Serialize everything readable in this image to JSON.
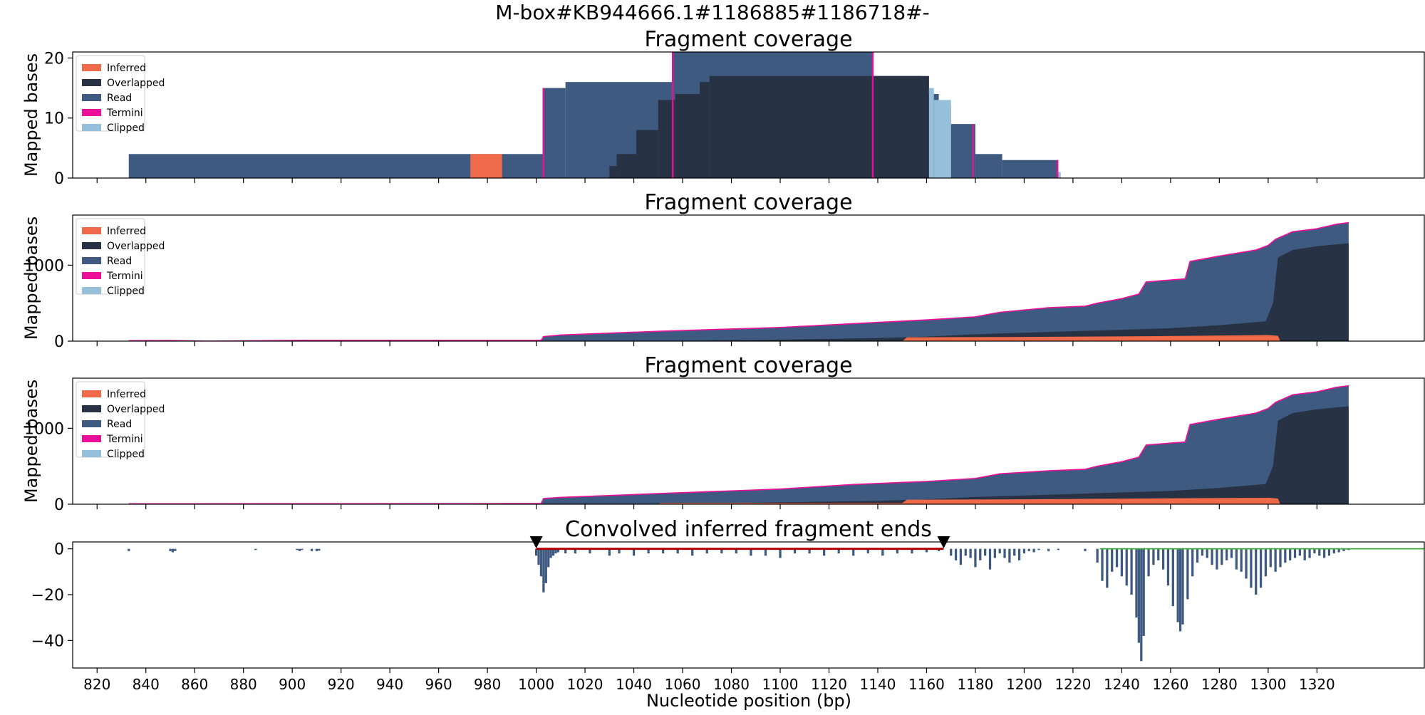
{
  "suptitle": "M-box#KB944666.1#1186885#1186718#-",
  "xlabel": "Nucleotide position (bp)",
  "x_ticks": [
    820,
    840,
    860,
    880,
    900,
    920,
    940,
    960,
    980,
    1000,
    1020,
    1040,
    1060,
    1080,
    1100,
    1120,
    1140,
    1160,
    1180,
    1200,
    1220,
    1240,
    1260,
    1280,
    1300,
    1320
  ],
  "xlim": [
    810,
    1364
  ],
  "colors": {
    "inferred": "#ef6a4a",
    "overlapped": "#283245",
    "read": "#3e5a80",
    "termini": "#ec0f9a",
    "clipped": "#96bfdb",
    "interval_line": "#b30000",
    "green_line": "#3aa83a",
    "marker": "#000000"
  },
  "chart_data": [
    {
      "type": "area",
      "title": "Fragment coverage",
      "ylabel": "Mapped bases",
      "ylim": [
        0,
        21
      ],
      "yticks": [
        0,
        10,
        20
      ],
      "legend_position": "upper-left",
      "legend": [
        "Inferred",
        "Overlapped",
        "Read",
        "Termini",
        "Clipped"
      ],
      "series": [
        {
          "name": "Read",
          "key": "read",
          "steps": [
            [
              833,
              1003,
              4
            ],
            [
              1003,
              1012,
              15
            ],
            [
              1012,
              1056,
              16
            ],
            [
              1056,
              1138,
              21
            ],
            [
              1138,
              1148,
              17
            ],
            [
              1148,
              1158,
              17
            ],
            [
              1158,
              1165,
              14
            ],
            [
              1165,
              1170,
              12
            ],
            [
              1170,
              1180,
              9
            ],
            [
              1180,
              1191,
              4
            ],
            [
              1191,
              1214,
              3
            ]
          ]
        },
        {
          "name": "Overlapped",
          "key": "overlapped",
          "steps": [
            [
              1030,
              1033,
              2
            ],
            [
              1033,
              1041,
              4
            ],
            [
              1041,
              1050,
              8
            ],
            [
              1050,
              1057,
              13
            ],
            [
              1057,
              1067,
              14
            ],
            [
              1067,
              1071,
              16
            ],
            [
              1071,
              1153,
              17
            ],
            [
              1153,
              1161,
              17
            ]
          ]
        },
        {
          "name": "Inferred",
          "key": "inferred",
          "steps": [
            [
              973,
              986,
              4
            ]
          ]
        },
        {
          "name": "Clipped",
          "key": "clipped",
          "steps": [
            [
              1161,
              1163,
              15
            ],
            [
              1163,
              1170,
              13
            ],
            [
              1214,
              1215,
              1
            ]
          ]
        },
        {
          "name": "Termini",
          "key": "termini",
          "steps": [
            [
              1002.6,
              1003.3,
              15
            ],
            [
              1055.6,
              1056.3,
              21
            ],
            [
              1137.6,
              1138.3,
              21
            ],
            [
              1178.7,
              1179.3,
              9
            ],
            [
              1213.3,
              1214,
              3
            ]
          ]
        }
      ]
    },
    {
      "type": "area",
      "title": "Fragment coverage",
      "ylabel": "Mapped bases",
      "ylim": [
        0,
        1660
      ],
      "yticks": [
        0,
        1000
      ],
      "legend_position": "upper-left",
      "legend": [
        "Inferred",
        "Overlapped",
        "Read",
        "Termini",
        "Clipped"
      ],
      "series": [
        {
          "name": "Read (total)",
          "key": "read",
          "curve": [
            [
              833,
              5
            ],
            [
              850,
              8
            ],
            [
              865,
              0
            ],
            [
              905,
              10
            ],
            [
              1002,
              10
            ],
            [
              1003,
              60
            ],
            [
              1010,
              80
            ],
            [
              1050,
              130
            ],
            [
              1100,
              180
            ],
            [
              1130,
              230
            ],
            [
              1160,
              280
            ],
            [
              1180,
              320
            ],
            [
              1190,
              380
            ],
            [
              1210,
              440
            ],
            [
              1225,
              460
            ],
            [
              1230,
              500
            ],
            [
              1240,
              560
            ],
            [
              1247,
              620
            ],
            [
              1250,
              780
            ],
            [
              1266,
              820
            ],
            [
              1268,
              1050
            ],
            [
              1280,
              1120
            ],
            [
              1295,
              1200
            ],
            [
              1300,
              1260
            ],
            [
              1303,
              1340
            ],
            [
              1310,
              1440
            ],
            [
              1320,
              1480
            ],
            [
              1328,
              1540
            ],
            [
              1333,
              1560
            ]
          ]
        },
        {
          "name": "Overlapped",
          "key": "overlapped",
          "curve": [
            [
              1050,
              0
            ],
            [
              1100,
              20
            ],
            [
              1140,
              40
            ],
            [
              1160,
              60
            ],
            [
              1180,
              90
            ],
            [
              1200,
              110
            ],
            [
              1230,
              140
            ],
            [
              1260,
              170
            ],
            [
              1280,
              210
            ],
            [
              1299,
              260
            ],
            [
              1302,
              500
            ],
            [
              1304,
              1100
            ],
            [
              1310,
              1200
            ],
            [
              1320,
              1250
            ],
            [
              1333,
              1290
            ]
          ]
        },
        {
          "name": "Inferred",
          "key": "inferred",
          "curve": [
            [
              1150,
              0
            ],
            [
              1152,
              50
            ],
            [
              1200,
              55
            ],
            [
              1250,
              65
            ],
            [
              1270,
              70
            ],
            [
              1300,
              80
            ],
            [
              1304,
              70
            ],
            [
              1305,
              0
            ]
          ]
        }
      ]
    },
    {
      "type": "area",
      "title": "Fragment coverage",
      "ylabel": "Mapped bases",
      "ylim": [
        0,
        1660
      ],
      "yticks": [
        0,
        1000
      ],
      "legend_position": "upper-left",
      "legend": [
        "Inferred",
        "Overlapped",
        "Read",
        "Termini",
        "Clipped"
      ],
      "series": [
        {
          "name": "Read (total)",
          "key": "read",
          "curve": [
            [
              833,
              5
            ],
            [
              973,
              8
            ],
            [
              1002,
              10
            ],
            [
              1003,
              75
            ],
            [
              1010,
              90
            ],
            [
              1050,
              140
            ],
            [
              1100,
              200
            ],
            [
              1130,
              260
            ],
            [
              1160,
              300
            ],
            [
              1180,
              340
            ],
            [
              1190,
              400
            ],
            [
              1210,
              440
            ],
            [
              1225,
              460
            ],
            [
              1230,
              500
            ],
            [
              1240,
              560
            ],
            [
              1247,
              620
            ],
            [
              1250,
              780
            ],
            [
              1266,
              820
            ],
            [
              1268,
              1050
            ],
            [
              1280,
              1120
            ],
            [
              1295,
              1200
            ],
            [
              1300,
              1260
            ],
            [
              1303,
              1340
            ],
            [
              1310,
              1440
            ],
            [
              1320,
              1480
            ],
            [
              1328,
              1540
            ],
            [
              1333,
              1560
            ]
          ]
        },
        {
          "name": "Overlapped",
          "key": "overlapped",
          "curve": [
            [
              1050,
              0
            ],
            [
              1100,
              25
            ],
            [
              1140,
              45
            ],
            [
              1160,
              65
            ],
            [
              1180,
              95
            ],
            [
              1200,
              115
            ],
            [
              1230,
              145
            ],
            [
              1260,
              175
            ],
            [
              1280,
              215
            ],
            [
              1299,
              265
            ],
            [
              1302,
              500
            ],
            [
              1304,
              1100
            ],
            [
              1310,
              1200
            ],
            [
              1320,
              1250
            ],
            [
              1333,
              1290
            ]
          ]
        },
        {
          "name": "Inferred",
          "key": "inferred",
          "curve": [
            [
              973,
              0
            ],
            [
              974,
              8
            ],
            [
              986,
              8
            ],
            [
              987,
              0
            ],
            [
              1050,
              0
            ],
            [
              1051,
              15
            ],
            [
              1150,
              15
            ],
            [
              1152,
              60
            ],
            [
              1200,
              65
            ],
            [
              1250,
              75
            ],
            [
              1270,
              80
            ],
            [
              1300,
              85
            ],
            [
              1304,
              75
            ],
            [
              1305,
              0
            ]
          ]
        }
      ]
    },
    {
      "type": "bar",
      "title": "Convolved inferred fragment ends",
      "ylim": [
        -52,
        3
      ],
      "yticks": [
        0,
        -20,
        -40
      ],
      "markers": [
        1000,
        1167
      ],
      "interval": [
        1000,
        1167
      ],
      "green_line": [
        1231,
        1364
      ],
      "bars": [
        [
          833,
          -1
        ],
        [
          850,
          -1
        ],
        [
          851,
          -1.5
        ],
        [
          852,
          -1
        ],
        [
          885,
          -0.5
        ],
        [
          902,
          -0.5
        ],
        [
          903,
          -1
        ],
        [
          904,
          -0.5
        ],
        [
          908,
          -1
        ],
        [
          910,
          -1
        ],
        [
          911,
          -0.8
        ],
        [
          1000,
          -3
        ],
        [
          1001,
          -7
        ],
        [
          1002,
          -12
        ],
        [
          1003,
          -19
        ],
        [
          1004,
          -15
        ],
        [
          1005,
          -8
        ],
        [
          1006,
          -4
        ],
        [
          1007,
          -3
        ],
        [
          1008,
          -2
        ],
        [
          1009,
          -1.5
        ],
        [
          1012,
          -2
        ],
        [
          1016,
          -2
        ],
        [
          1022,
          -2
        ],
        [
          1030,
          -3
        ],
        [
          1034,
          -2
        ],
        [
          1040,
          -3
        ],
        [
          1046,
          -2
        ],
        [
          1052,
          -2
        ],
        [
          1058,
          -2
        ],
        [
          1064,
          -3
        ],
        [
          1070,
          -2
        ],
        [
          1076,
          -2
        ],
        [
          1082,
          -2
        ],
        [
          1088,
          -3
        ],
        [
          1094,
          -3
        ],
        [
          1100,
          -4
        ],
        [
          1106,
          -2
        ],
        [
          1112,
          -2
        ],
        [
          1118,
          -3
        ],
        [
          1124,
          -2
        ],
        [
          1130,
          -3
        ],
        [
          1136,
          -2
        ],
        [
          1142,
          -3
        ],
        [
          1148,
          -2
        ],
        [
          1154,
          -2
        ],
        [
          1160,
          -1.5
        ],
        [
          1165,
          -1
        ],
        [
          1170,
          -3
        ],
        [
          1172,
          -5
        ],
        [
          1174,
          -7
        ],
        [
          1176,
          -3
        ],
        [
          1178,
          -4
        ],
        [
          1180,
          -8
        ],
        [
          1182,
          -5
        ],
        [
          1184,
          -3
        ],
        [
          1186,
          -9
        ],
        [
          1188,
          -4
        ],
        [
          1190,
          -2
        ],
        [
          1192,
          -4
        ],
        [
          1194,
          -6
        ],
        [
          1196,
          -3
        ],
        [
          1198,
          -5
        ],
        [
          1200,
          -2
        ],
        [
          1202,
          -1
        ],
        [
          1204,
          -1.5
        ],
        [
          1206,
          -0.5
        ],
        [
          1210,
          -1
        ],
        [
          1214,
          -0.5
        ],
        [
          1225,
          -1
        ],
        [
          1230,
          -6
        ],
        [
          1232,
          -14
        ],
        [
          1234,
          -17
        ],
        [
          1236,
          -10
        ],
        [
          1238,
          -8
        ],
        [
          1240,
          -12
        ],
        [
          1242,
          -16
        ],
        [
          1244,
          -20
        ],
        [
          1246,
          -30
        ],
        [
          1247,
          -41
        ],
        [
          1248,
          -49
        ],
        [
          1249,
          -38
        ],
        [
          1251,
          -12
        ],
        [
          1253,
          -7
        ],
        [
          1255,
          -5
        ],
        [
          1257,
          -9
        ],
        [
          1259,
          -16
        ],
        [
          1261,
          -25
        ],
        [
          1263,
          -32
        ],
        [
          1264,
          -36
        ],
        [
          1265,
          -33
        ],
        [
          1267,
          -22
        ],
        [
          1269,
          -12
        ],
        [
          1271,
          -6
        ],
        [
          1273,
          -3
        ],
        [
          1275,
          -4
        ],
        [
          1277,
          -7
        ],
        [
          1279,
          -9
        ],
        [
          1281,
          -7
        ],
        [
          1283,
          -5
        ],
        [
          1285,
          -4
        ],
        [
          1287,
          -9
        ],
        [
          1289,
          -10
        ],
        [
          1291,
          -13
        ],
        [
          1293,
          -17
        ],
        [
          1295,
          -20
        ],
        [
          1297,
          -17
        ],
        [
          1299,
          -12
        ],
        [
          1301,
          -8
        ],
        [
          1303,
          -10
        ],
        [
          1305,
          -8
        ],
        [
          1307,
          -6
        ],
        [
          1309,
          -5
        ],
        [
          1311,
          -4
        ],
        [
          1313,
          -3
        ],
        [
          1315,
          -5
        ],
        [
          1317,
          -4
        ],
        [
          1319,
          -2
        ],
        [
          1321,
          -3
        ],
        [
          1323,
          -4
        ],
        [
          1325,
          -3
        ],
        [
          1327,
          -2
        ],
        [
          1329,
          -1.5
        ],
        [
          1331,
          -1
        ],
        [
          1333,
          -0.5
        ]
      ]
    }
  ]
}
